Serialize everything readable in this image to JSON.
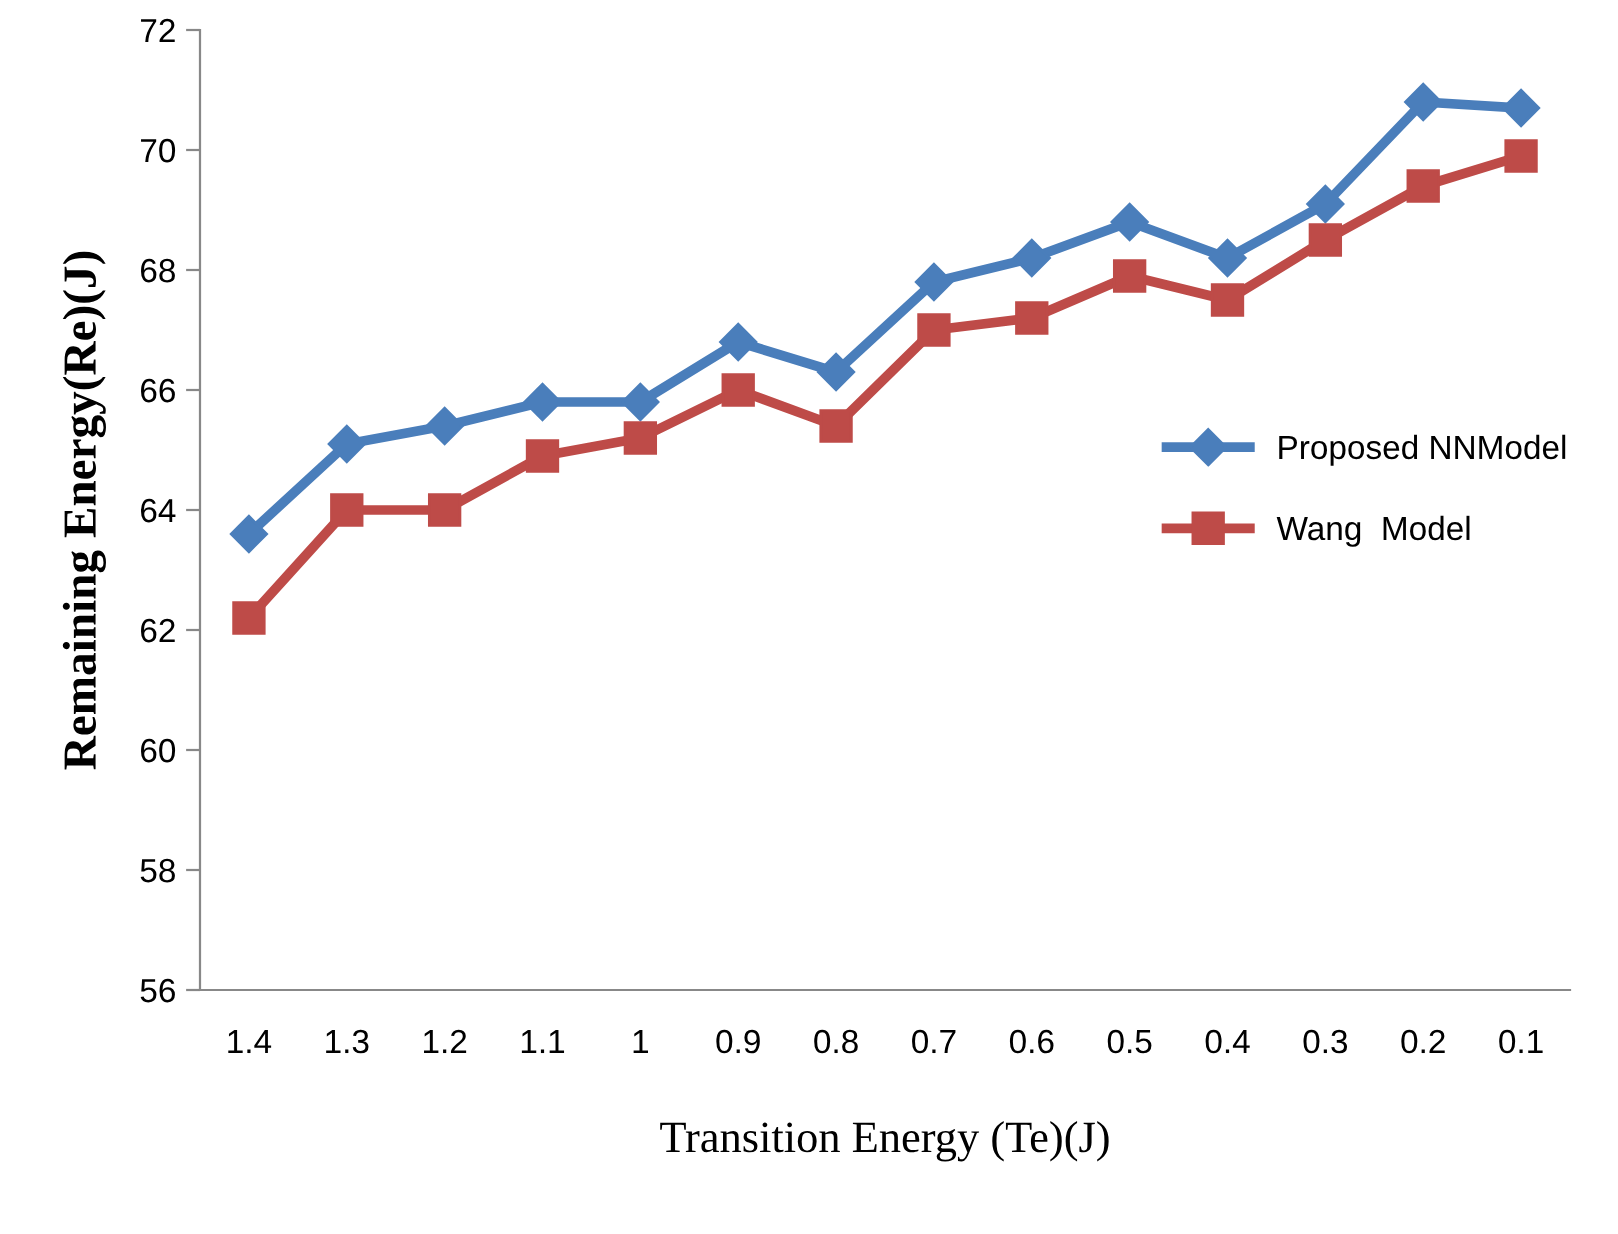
{
  "chart_data": {
    "type": "line",
    "xlabel": "Transition Energy (Te)(J)",
    "ylabel": "Remaining Energy(Re)(J)",
    "categories": [
      "1.4",
      "1.3",
      "1.2",
      "1.1",
      "1",
      "0.9",
      "0.8",
      "0.7",
      "0.6",
      "0.5",
      "0.4",
      "0.3",
      "0.2",
      "0.1"
    ],
    "series": [
      {
        "name": "Proposed NNModel",
        "color": "#4a7ebb",
        "marker": "diamond",
        "values": [
          63.6,
          65.1,
          65.4,
          65.8,
          65.8,
          66.8,
          66.3,
          67.8,
          68.2,
          68.8,
          68.2,
          69.1,
          70.8,
          70.7
        ]
      },
      {
        "name": "Wang  Model",
        "color": "#be4b48",
        "marker": "square",
        "values": [
          62.2,
          64.0,
          64.0,
          64.9,
          65.2,
          66.0,
          65.4,
          67.0,
          67.2,
          67.9,
          67.5,
          68.5,
          69.4,
          69.9
        ]
      }
    ],
    "ylim": [
      56,
      72
    ],
    "yticks": [
      56,
      58,
      60,
      62,
      64,
      66,
      68,
      70,
      72
    ],
    "grid": false,
    "legend": "right",
    "line_style": "solid"
  }
}
